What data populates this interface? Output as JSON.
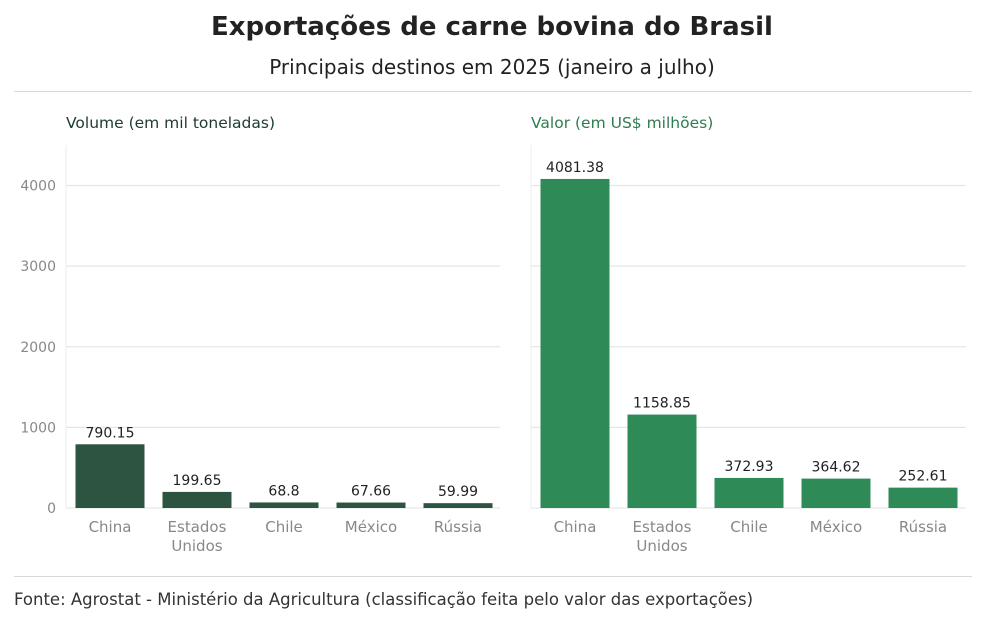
{
  "header": {
    "title": "Exportações de carne bovina do Brasil",
    "subtitle": "Principais destinos em 2025 (janeiro a julho)"
  },
  "footer": {
    "source": "Fonte: Agrostat - Ministério da Agricultura (classificação feita pelo valor das exportações)"
  },
  "chart_data": [
    {
      "type": "bar",
      "title": "Volume (em mil toneladas)",
      "categories": [
        "China",
        "Estados Unidos",
        "Chile",
        "México",
        "Rússia"
      ],
      "values": [
        790.15,
        199.65,
        68.8,
        67.66,
        59.99
      ],
      "value_labels": [
        "790.15",
        "199.65",
        "68.8",
        "67.66",
        "59.99"
      ],
      "yticks": [
        0,
        1000,
        2000,
        3000,
        4000
      ],
      "ylim": [
        0,
        4500
      ],
      "grid": true,
      "color": "#2d5441",
      "title_color": "#1e3b2d"
    },
    {
      "type": "bar",
      "title": "Valor (em US$ milhões)",
      "categories": [
        "China",
        "Estados Unidos",
        "Chile",
        "México",
        "Rússia"
      ],
      "values": [
        4081.38,
        1158.85,
        372.93,
        364.62,
        252.61
      ],
      "value_labels": [
        "4081.38",
        "1158.85",
        "372.93",
        "364.62",
        "252.61"
      ],
      "ylim": [
        0,
        4500
      ],
      "grid": true,
      "color": "#2e8b57",
      "title_color": "#2e7d4f"
    }
  ]
}
